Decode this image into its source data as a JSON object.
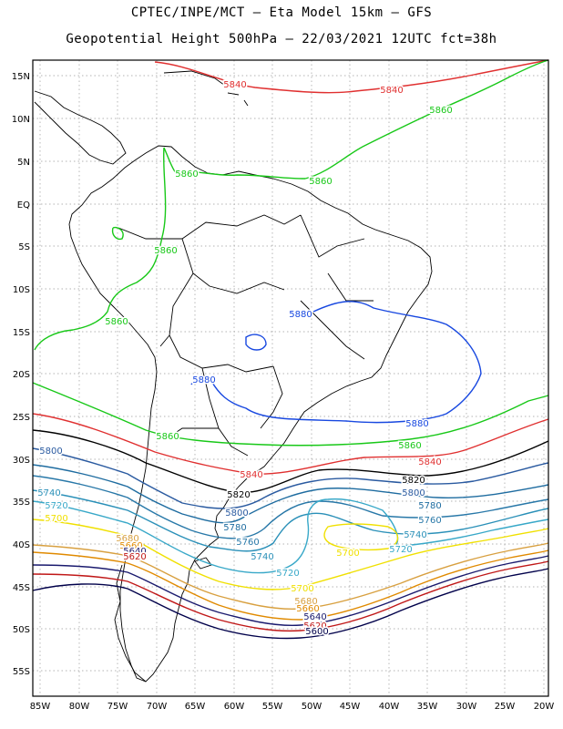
{
  "header": {
    "line1": "CPTEC/INPE/MCT –  Eta Model 15km – GFS",
    "line2": "Geopotential Height 500hPa – 22/03/2021 12UTC fct=38h"
  },
  "axes": {
    "lat_labels": [
      "15N",
      "10N",
      "5N",
      "EQ",
      "5S",
      "10S",
      "15S",
      "20S",
      "25S",
      "30S",
      "35S",
      "40S",
      "45S",
      "50S",
      "55S"
    ],
    "lon_labels": [
      "85W",
      "80W",
      "75W",
      "70W",
      "65W",
      "60W",
      "55W",
      "50W",
      "45W",
      "40W",
      "35W",
      "30W",
      "25W",
      "20W"
    ],
    "lat_range": [
      -58,
      17
    ],
    "lon_range": [
      -86,
      -20
    ],
    "grid": "dotted"
  },
  "colors": {
    "c5600": "#00004a",
    "c5620": "#c01818",
    "c5640": "#1a1a6e",
    "c5660": "#e08a00",
    "c5680": "#d8a040",
    "c5700": "#f0e000",
    "c5720": "#38a8c8",
    "c5740": "#2a90b8",
    "c5760": "#2878a8",
    "c5780": "#1e6ca0",
    "c5800": "#2a5aa0",
    "c5820": "#000000",
    "c5840": "#e03030",
    "c5860": "#18c818",
    "c5880": "#1848e0",
    "coast": "#000000"
  },
  "contour_labels": [
    {
      "text": "5840",
      "color": "c5840"
    },
    {
      "text": "5840",
      "color": "c5840"
    },
    {
      "text": "5860",
      "color": "c5860"
    },
    {
      "text": "5860",
      "color": "c5860"
    },
    {
      "text": "5860",
      "color": "c5860"
    },
    {
      "text": "5860",
      "color": "c5860"
    },
    {
      "text": "5860",
      "color": "c5860"
    },
    {
      "text": "5880",
      "color": "c5880"
    },
    {
      "text": "5880",
      "color": "c5880"
    },
    {
      "text": "5880",
      "color": "c5880"
    },
    {
      "text": "5860",
      "color": "c5860"
    },
    {
      "text": "5860",
      "color": "c5860"
    },
    {
      "text": "5840",
      "color": "c5840"
    },
    {
      "text": "5840",
      "color": "c5840"
    },
    {
      "text": "5820",
      "color": "c5820"
    },
    {
      "text": "5820",
      "color": "c5820"
    },
    {
      "text": "5800",
      "color": "c5800"
    },
    {
      "text": "5800",
      "color": "c5800"
    },
    {
      "text": "5800",
      "color": "c5800"
    },
    {
      "text": "5780",
      "color": "c5780"
    },
    {
      "text": "5780",
      "color": "c5780"
    },
    {
      "text": "5760",
      "color": "c5760"
    },
    {
      "text": "5760",
      "color": "c5760"
    },
    {
      "text": "5740",
      "color": "c5740"
    },
    {
      "text": "5740",
      "color": "c5740"
    },
    {
      "text": "5740",
      "color": "c5740"
    },
    {
      "text": "5720",
      "color": "c5720"
    },
    {
      "text": "5720",
      "color": "c5720"
    },
    {
      "text": "5720",
      "color": "c5720"
    },
    {
      "text": "5700",
      "color": "c5700"
    },
    {
      "text": "5700",
      "color": "c5700"
    },
    {
      "text": "5700",
      "color": "c5700"
    },
    {
      "text": "5680",
      "color": "c5680"
    },
    {
      "text": "5680",
      "color": "c5680"
    },
    {
      "text": "5660",
      "color": "c5660"
    },
    {
      "text": "5660",
      "color": "c5660"
    },
    {
      "text": "5640",
      "color": "c5640"
    },
    {
      "text": "5640",
      "color": "c5640"
    },
    {
      "text": "5620",
      "color": "c5620"
    },
    {
      "text": "5620",
      "color": "c5620"
    },
    {
      "text": "5600",
      "color": "c5600"
    }
  ]
}
